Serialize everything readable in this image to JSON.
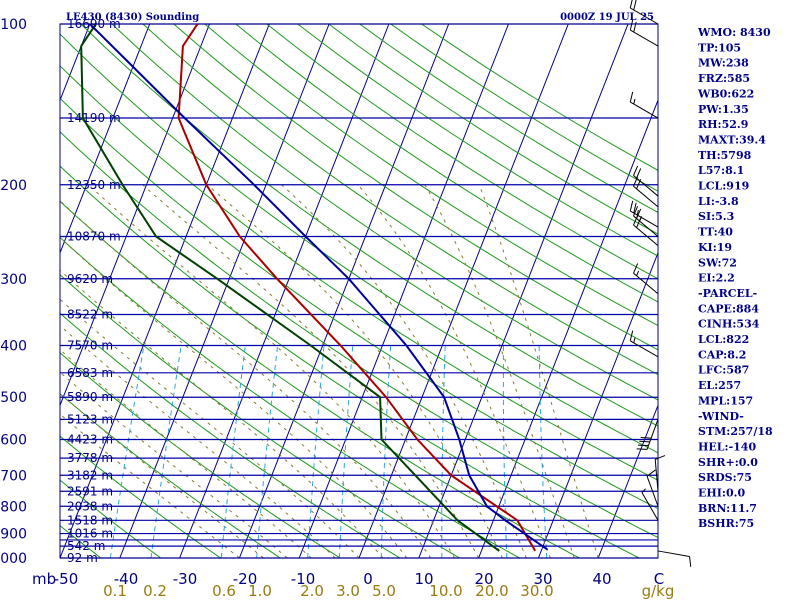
{
  "header": {
    "title": "LE430 (8430) Sounding",
    "time": "0000Z 19 JUL 25"
  },
  "indices": [
    "WMO: 8430",
    "TP:105",
    "MW:238",
    "FRZ:585",
    "WB0:622",
    "PW:1.35",
    "RH:52.9",
    "MAXT:39.4",
    "TH:5798",
    "L57:8.1",
    "LCL:919",
    "LI:-3.8",
    "SI:5.3",
    "TT:40",
    "KI:19",
    "SW:72",
    "EI:2.2",
    "-PARCEL-",
    "CAPE:884",
    "CINH:534",
    "LCL:822",
    "CAP:8.2",
    "LFC:587",
    "EL:257",
    "MPL:157",
    "-WIND-",
    "STM:257/18",
    "HEL:-140",
    "SHR+:0.0",
    "SRDS:75",
    "EHI:0.0",
    "BRN:11.7",
    "BSHR:75"
  ],
  "colors": {
    "isobar": "#0000aa",
    "isotherm": "#00008b",
    "dry_adiabat": "#1e9a1e",
    "moist_adiabat": "#8a7a30",
    "mixing_ratio": "#2aa6e0",
    "temperature": "#aa0000",
    "dewpoint": "#004000",
    "parcel": "#000099",
    "wind": "#000000"
  },
  "chart_data": {
    "type": "skew-t log-p",
    "x_axis": {
      "label": "C",
      "unit_prefix": "mb",
      "range": [
        -50,
        50
      ],
      "ticks": [
        -50,
        -40,
        -30,
        -20,
        -10,
        0,
        10,
        20,
        30,
        40
      ]
    },
    "y_axis": {
      "scale": "log",
      "range": [
        1000,
        100
      ],
      "labels": [
        100,
        200,
        300,
        400,
        500,
        600,
        700,
        800,
        900,
        1000
      ]
    },
    "isobars": [
      100,
      150,
      200,
      250,
      300,
      350,
      400,
      450,
      500,
      550,
      600,
      650,
      700,
      750,
      800,
      850,
      900,
      925,
      950,
      1000
    ],
    "heights": [
      {
        "p": 100,
        "label": "16690 m"
      },
      {
        "p": 150,
        "label": "14190 m"
      },
      {
        "p": 200,
        "label": "12350 m"
      },
      {
        "p": 250,
        "label": "10870 m"
      },
      {
        "p": 300,
        "label": "9620 m"
      },
      {
        "p": 350,
        "label": "8522 m"
      },
      {
        "p": 400,
        "label": "7570 m"
      },
      {
        "p": 450,
        "label": "6583 m"
      },
      {
        "p": 500,
        "label": "5890 m"
      },
      {
        "p": 550,
        "label": "5123 m"
      },
      {
        "p": 600,
        "label": "4423 m"
      },
      {
        "p": 650,
        "label": "3778 m"
      },
      {
        "p": 700,
        "label": "3182 m"
      },
      {
        "p": 750,
        "label": "2591 m"
      },
      {
        "p": 800,
        "label": "2038 m"
      },
      {
        "p": 850,
        "label": "1518 m"
      },
      {
        "p": 900,
        "label": "1016 m"
      },
      {
        "p": 950,
        "label": "542 m"
      },
      {
        "p": 1000,
        "label": "92 m"
      }
    ],
    "mixing_ratio_labels": [
      "0.1",
      "0.2",
      "0.6",
      "1.0",
      "2.0",
      "3.0",
      "5.0",
      "10.0",
      "20.0",
      "30.0",
      "g/kg"
    ],
    "mixing_ratio_values": [
      0.1,
      0.2,
      0.6,
      1.0,
      2.0,
      3.0,
      5.0,
      10.0,
      20.0,
      30.0
    ],
    "series": [
      {
        "name": "temperature",
        "points": [
          [
            970,
            29
          ],
          [
            850,
            24
          ],
          [
            700,
            10
          ],
          [
            600,
            2
          ],
          [
            500,
            -6
          ],
          [
            400,
            -17
          ],
          [
            300,
            -32
          ],
          [
            250,
            -41
          ],
          [
            200,
            -50
          ],
          [
            150,
            -59
          ],
          [
            110,
            -63
          ],
          [
            100,
            -62
          ]
        ]
      },
      {
        "name": "dewpoint",
        "points": [
          [
            970,
            23
          ],
          [
            850,
            14
          ],
          [
            700,
            4
          ],
          [
            600,
            -4
          ],
          [
            500,
            -7
          ],
          [
            400,
            -22
          ],
          [
            300,
            -42
          ],
          [
            250,
            -55
          ],
          [
            200,
            -64
          ],
          [
            150,
            -75
          ],
          [
            110,
            -80
          ],
          [
            100,
            -79
          ]
        ]
      },
      {
        "name": "parcel",
        "points": [
          [
            965,
            31
          ],
          [
            850,
            22
          ],
          [
            800,
            18
          ],
          [
            700,
            13
          ],
          [
            600,
            9
          ],
          [
            500,
            3.7
          ],
          [
            400,
            -6
          ],
          [
            300,
            -20
          ],
          [
            250,
            -30
          ],
          [
            200,
            -42
          ],
          [
            150,
            -58
          ],
          [
            100,
            -80
          ]
        ]
      }
    ],
    "wind_barbs": [
      {
        "p": 970,
        "dir": 100,
        "spd": 10
      },
      {
        "p": 850,
        "dir": 330,
        "spd": 5
      },
      {
        "p": 800,
        "dir": 340,
        "spd": 10
      },
      {
        "p": 750,
        "dir": 355,
        "spd": 10
      },
      {
        "p": 550,
        "dir": 200,
        "spd": 40
      },
      {
        "p": 420,
        "dir": 300,
        "spd": 15
      },
      {
        "p": 320,
        "dir": 310,
        "spd": 15
      },
      {
        "p": 260,
        "dir": 310,
        "spd": 20
      },
      {
        "p": 250,
        "dir": 310,
        "spd": 25
      },
      {
        "p": 240,
        "dir": 300,
        "spd": 25
      },
      {
        "p": 220,
        "dir": 310,
        "spd": 20
      },
      {
        "p": 210,
        "dir": 310,
        "spd": 20
      },
      {
        "p": 150,
        "dir": 300,
        "spd": 15
      },
      {
        "p": 110,
        "dir": 300,
        "spd": 20
      },
      {
        "p": 100,
        "dir": 300,
        "spd": 20
      }
    ]
  }
}
